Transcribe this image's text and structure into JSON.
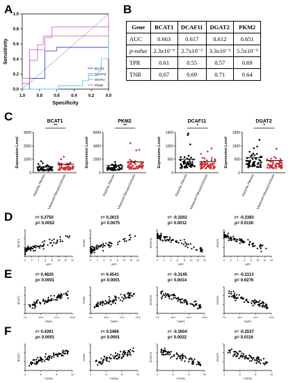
{
  "panels": {
    "A": "A",
    "B": "B",
    "C": "C",
    "D": "D",
    "E": "E",
    "F": "F"
  },
  "roc": {
    "xlabel": "Specificity",
    "ylabel": "Sensitivity",
    "xticks": [
      "1.0",
      "0.8",
      "0.6",
      "0.4",
      "0.2",
      "0.0"
    ],
    "yticks": [
      "0.0",
      "0.2",
      "0.4",
      "0.6",
      "0.8",
      "1.0"
    ],
    "legend": [
      {
        "name": "BCAT1",
        "color": "#3b4bd8"
      },
      {
        "name": "DCAF11",
        "color": "#c85fd6"
      },
      {
        "name": "DGAT2",
        "color": "#5ac6e8"
      },
      {
        "name": "PKM2",
        "color": "#e07090"
      }
    ]
  },
  "table": {
    "headers": [
      "Gene",
      "BCAT1",
      "DCAF11",
      "DGAT2",
      "PKM2"
    ],
    "rows": [
      [
        "AUC",
        "0.663",
        "0.617",
        "0.612",
        "0.651"
      ],
      [
        "p-value",
        "2.3x10⁻³",
        "2.7x10⁻²",
        "3.3x10⁻²",
        "5.5x10⁻³"
      ],
      [
        "TPR",
        "0.61",
        "0.55",
        "0.57",
        "0.69"
      ],
      [
        "TNR",
        "0.67",
        "0.69",
        "0.71",
        "0.64"
      ]
    ]
  },
  "chart_data": [
    {
      "type": "scatter",
      "title": "BCAT1",
      "ylabel": "Expression Level",
      "categories": [
        "Early/No Fibrosis",
        "Advanced Fibrosis/Cirrhosis"
      ],
      "ylim": [
        0,
        3000
      ],
      "yticks": [
        "0",
        "1000",
        "2000",
        "3000"
      ],
      "means": [
        420,
        620
      ],
      "significance": "**"
    },
    {
      "type": "scatter",
      "title": "PKM2",
      "ylabel": "Expression Level",
      "categories": [
        "Early/No Fibrosis",
        "Advanced Fibrosis/Cirrhosis"
      ],
      "ylim": [
        0,
        6000
      ],
      "yticks": [
        "0",
        "2000",
        "4000",
        "6000"
      ],
      "means": [
        1100,
        1600
      ],
      "significance": "**"
    },
    {
      "type": "scatter",
      "title": "DCAF11",
      "ylabel": "Expression Level",
      "categories": [
        "Early/No Fibrosis",
        "Advanced Fibrosis/Cirrhosis"
      ],
      "ylim": [
        0,
        1500
      ],
      "yticks": [
        "0",
        "500",
        "1000",
        "1500"
      ],
      "means": [
        500,
        410
      ],
      "significance": "*"
    },
    {
      "type": "scatter",
      "title": "DGAT2",
      "ylabel": "Expression Level",
      "categories": [
        "Early/No Fibrosis",
        "Advanced Fibrosis/Cirrhosis"
      ],
      "ylim": [
        0,
        1500
      ],
      "yticks": [
        "0",
        "500",
        "1000",
        "1500"
      ],
      "means": [
        560,
        450
      ],
      "significance": "*"
    }
  ],
  "correlations": {
    "rows": [
      {
        "panel": "D",
        "xlabel": "AFP",
        "xticks": [
          "0",
          "2",
          "4",
          "6",
          "8",
          "10",
          "12",
          "14"
        ],
        "xmax": 14,
        "cells": [
          {
            "gene": "BCAT1",
            "r": "r= 0.2750",
            "p": "p= 0.0052",
            "slope": 1
          },
          {
            "gene": "PKM2",
            "r": "r= 0.2615",
            "p": "p= 0.0075",
            "slope": 1
          },
          {
            "gene": "DCAF11",
            "r": "r= -0.3202",
            "p": "p= 0.0012",
            "slope": -1
          },
          {
            "gene": "DGAT2",
            "r": "r= -0.2383",
            "p": "p= 0.0150",
            "slope": -1
          }
        ]
      },
      {
        "panel": "E",
        "xlabel": "TIMP1",
        "xticks": [
          "7.6",
          "10.0",
          "12.4",
          "14.8"
        ],
        "xmax": 16,
        "cells": [
          {
            "gene": "BCAT1",
            "r": "r= 0.4820",
            "p": "p< 0.0001",
            "slope": 1
          },
          {
            "gene": "PKM2",
            "r": "r= 0.4541",
            "p": "p< 0.0001",
            "slope": 1
          },
          {
            "gene": "DCAF11",
            "r": "r= -0.3145",
            "p": "p= 0.0014",
            "slope": -1
          },
          {
            "gene": "DGAT2",
            "r": "r= -0.2113",
            "p": "p= 0.0276",
            "slope": -1
          }
        ]
      },
      {
        "panel": "F",
        "xlabel": "TGFB1",
        "xticks": [
          "4",
          "6",
          "8",
          "10"
        ],
        "xmax": 10,
        "cells": [
          {
            "gene": "BCAT1",
            "r": "r= 0.4391",
            "p": "p< 0.0001",
            "slope": 1
          },
          {
            "gene": "PKM2",
            "r": "r= 0.5466",
            "p": "p< 0.0001",
            "slope": 1
          },
          {
            "gene": "DCAF11",
            "r": "r= -0.3004",
            "p": "p= 0.0022",
            "slope": -1
          },
          {
            "gene": "DGAT2",
            "r": "r= -0.2537",
            "p": "p= 0.0116",
            "slope": -1
          }
        ]
      }
    ]
  }
}
